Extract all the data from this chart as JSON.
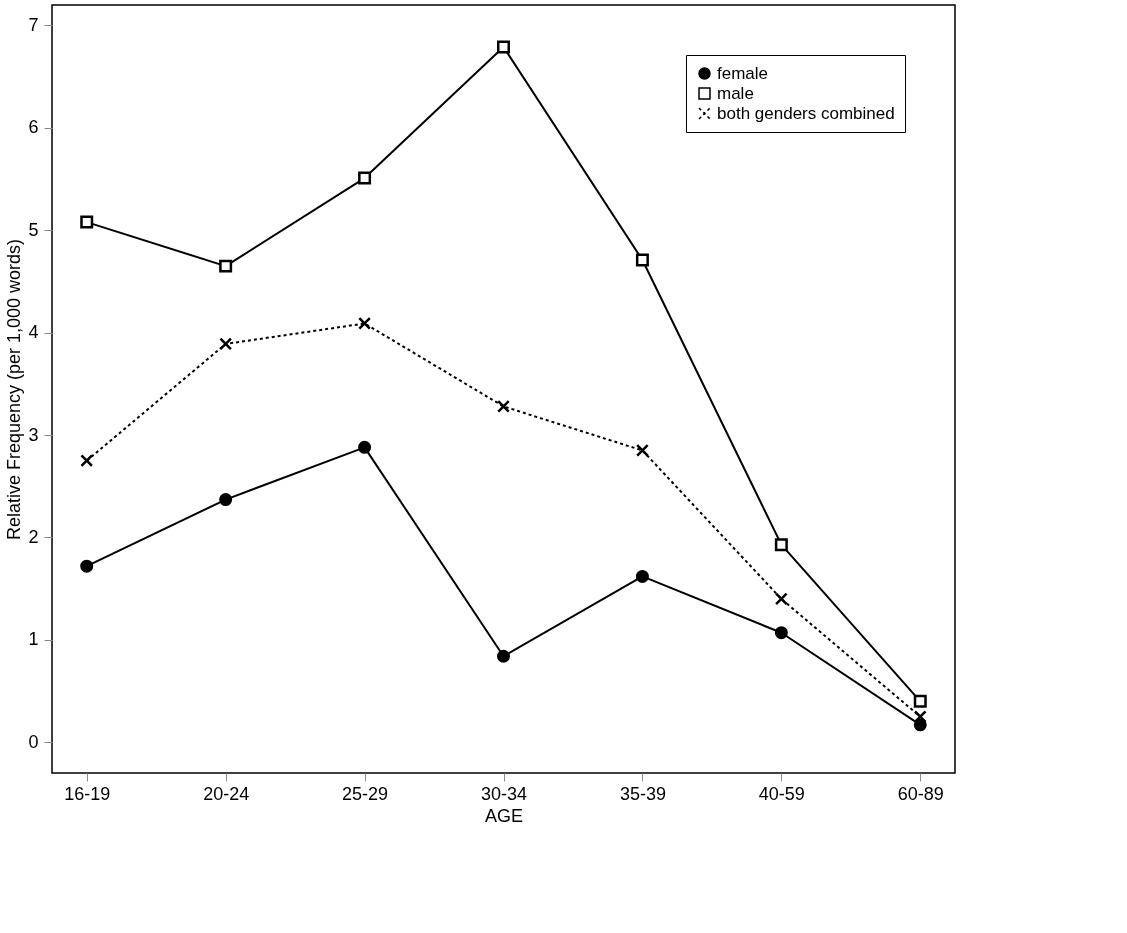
{
  "chart_data": {
    "type": "line",
    "xlabel": "AGE",
    "ylabel": "Relative Frequency (per 1,000 words)",
    "categories": [
      "16-19",
      "20-24",
      "25-29",
      "30-34",
      "35-39",
      "40-59",
      "60-89"
    ],
    "series": [
      {
        "name": "female",
        "color": "#000000",
        "marker": "circle",
        "line_style": "solid",
        "values": [
          1.72,
          2.37,
          2.88,
          0.84,
          1.62,
          1.07,
          0.17
        ]
      },
      {
        "name": "male",
        "color": "#000000",
        "marker": "square",
        "line_style": "solid",
        "values": [
          5.08,
          4.65,
          5.51,
          6.79,
          4.71,
          1.93,
          0.4
        ]
      },
      {
        "name": "both genders combined",
        "color": "#000000",
        "marker": "cross",
        "line_style": "dotted",
        "values": [
          2.75,
          3.89,
          4.09,
          3.28,
          2.85,
          1.4,
          0.25
        ]
      }
    ],
    "ylim": [
      -0.3,
      7.2
    ],
    "yticks": [
      0,
      1,
      2,
      3,
      4,
      5,
      6,
      7
    ],
    "grid": false,
    "legend": "top right"
  }
}
